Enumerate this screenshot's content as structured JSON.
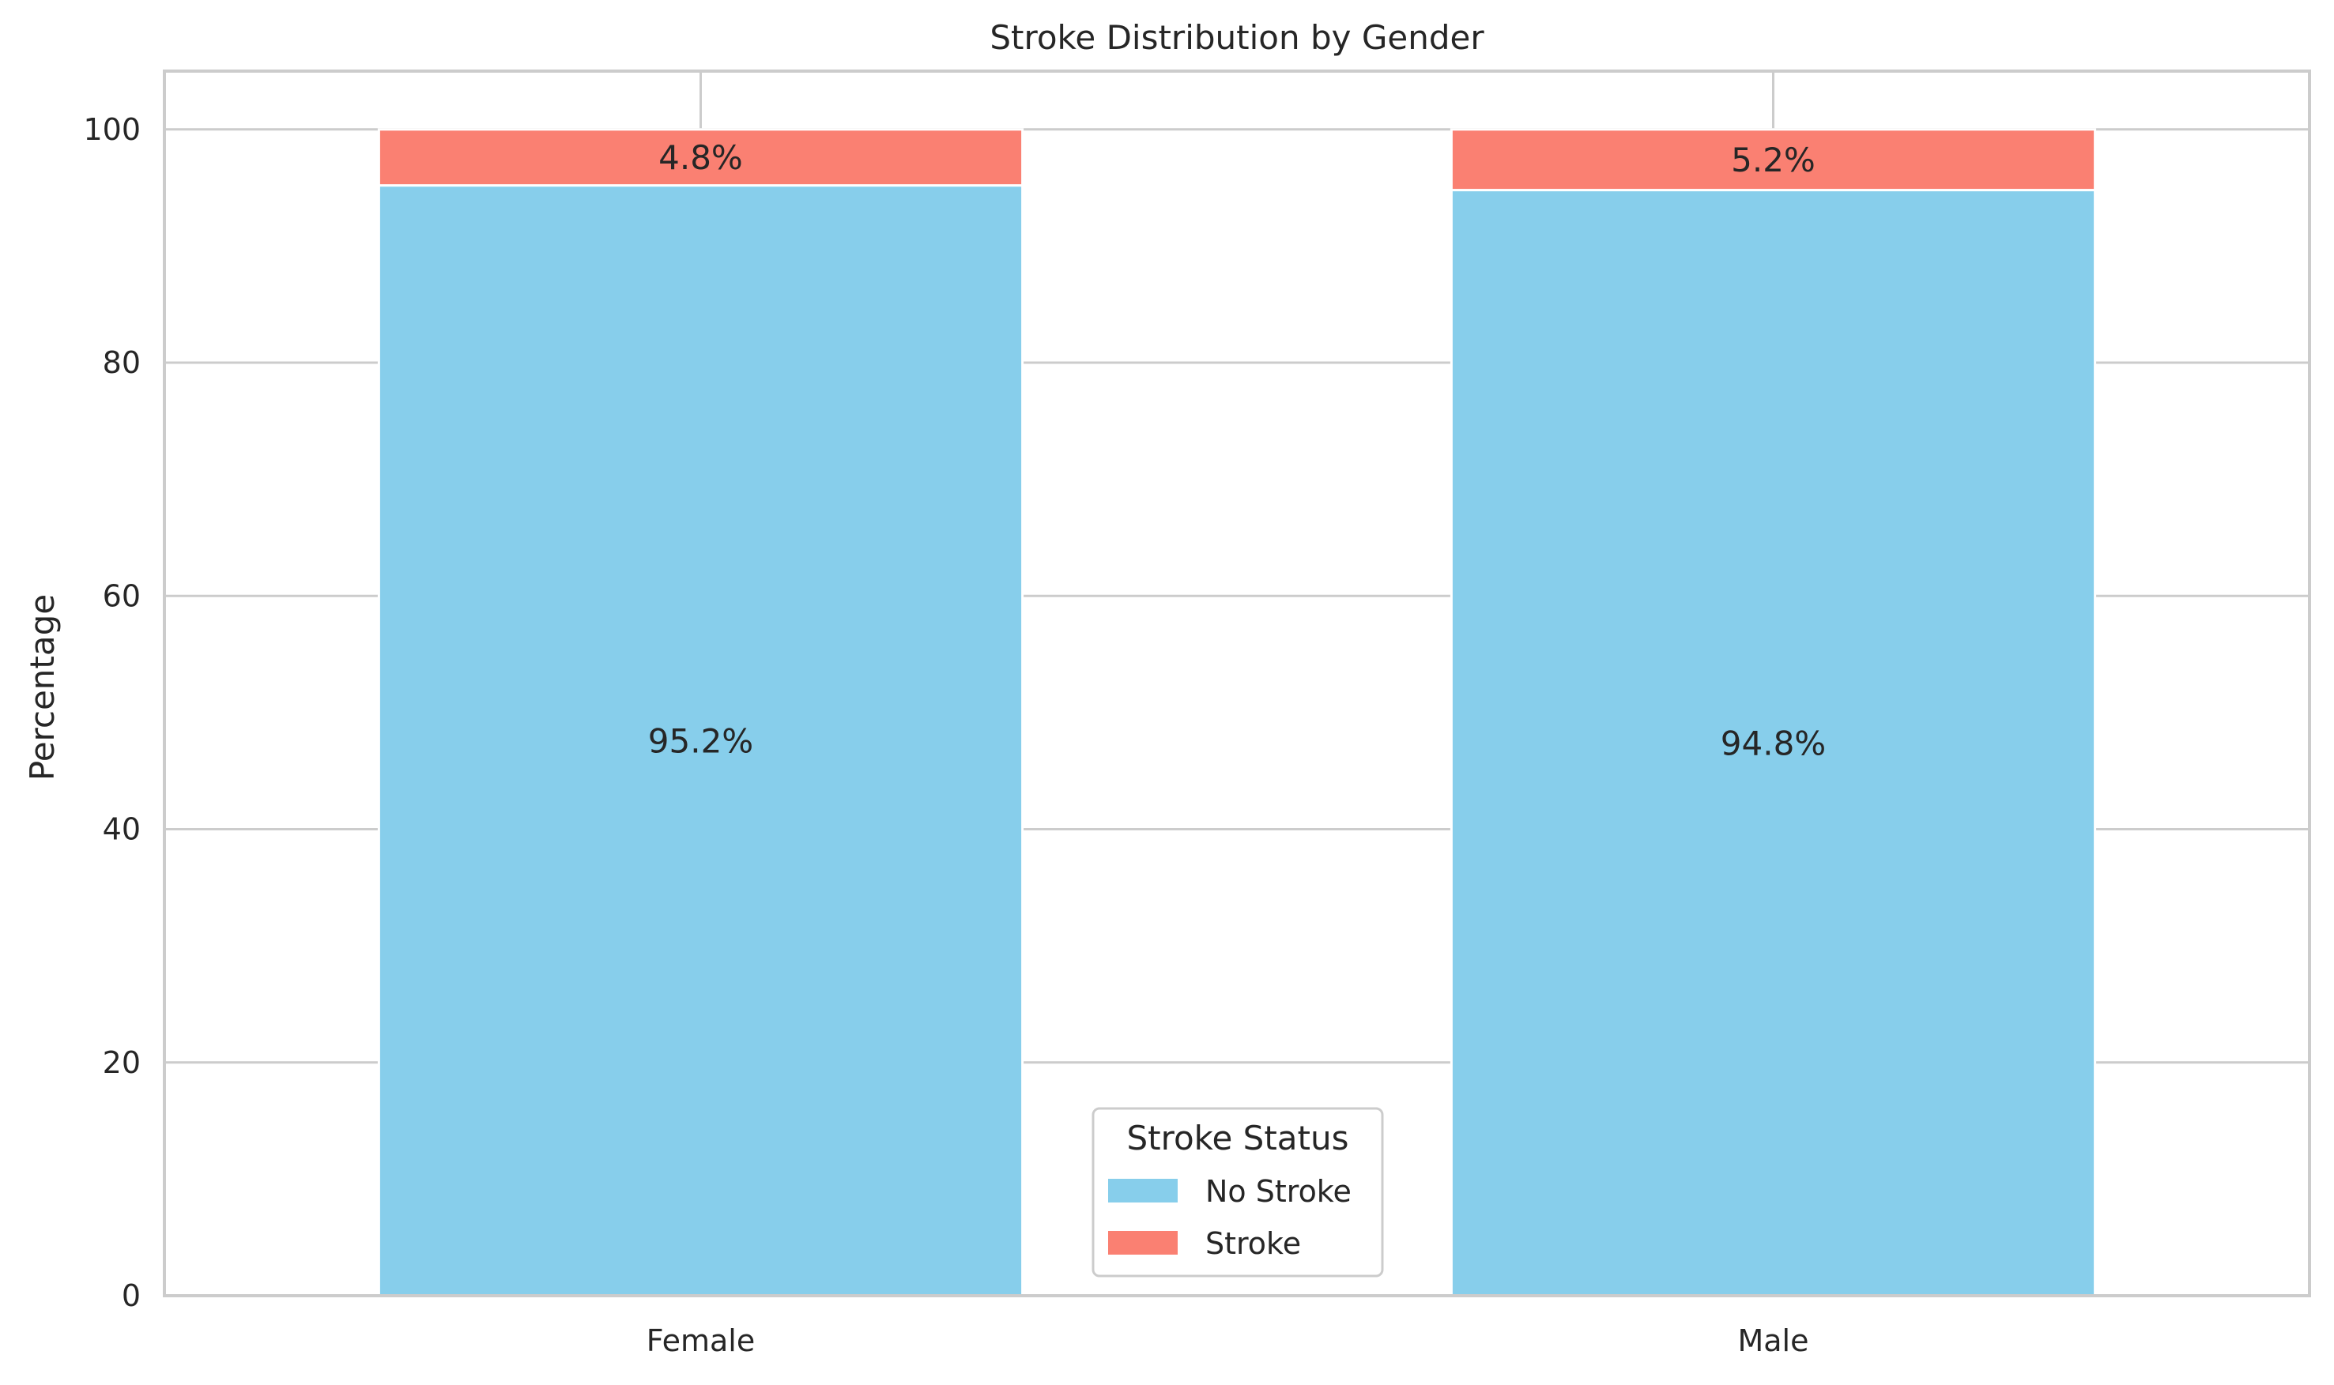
{
  "chart_data": {
    "type": "bar",
    "stacked": true,
    "title": "Stroke Distribution by Gender",
    "xlabel": "",
    "ylabel": "Percentage",
    "categories": [
      "Female",
      "Male"
    ],
    "series": [
      {
        "name": "No Stroke",
        "values": [
          95.2,
          94.8
        ],
        "labels": [
          "95.2%",
          "94.8%"
        ],
        "color": "#87CEEB"
      },
      {
        "name": "Stroke",
        "values": [
          4.8,
          5.2
        ],
        "labels": [
          "4.8%",
          "5.2%"
        ],
        "color": "#FA8072"
      }
    ],
    "ylim": [
      0,
      105
    ],
    "yticks": [
      0,
      20,
      40,
      60,
      80,
      100
    ],
    "grid": true,
    "legend": {
      "title": "Stroke Status",
      "placement": "lower-center"
    }
  }
}
